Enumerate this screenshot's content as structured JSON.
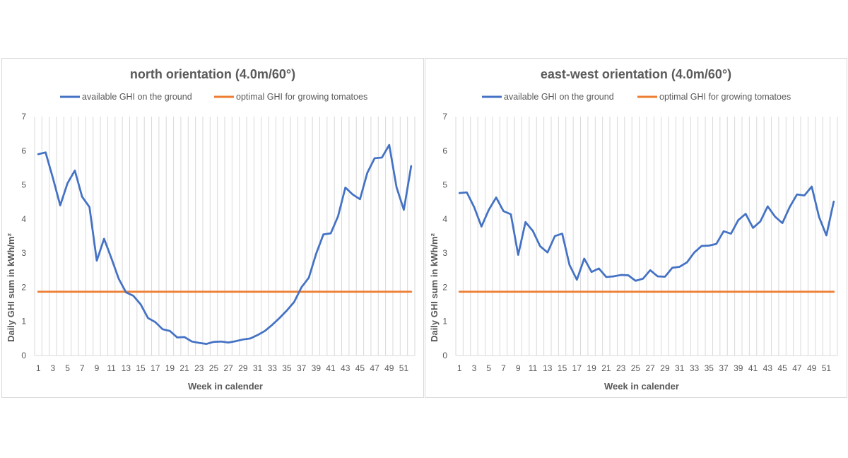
{
  "chart_data": [
    {
      "type": "line",
      "title": "north orientation (4.0m/60°)",
      "xlabel": "Week in calender",
      "ylabel": "Daily GHI sum in kWh/m²",
      "ylim": [
        0,
        7
      ],
      "yticks": [
        "0",
        "1",
        "2",
        "3",
        "4",
        "5",
        "6",
        "7"
      ],
      "xticks": [
        "1",
        "3",
        "5",
        "7",
        "9",
        "11",
        "13",
        "15",
        "17",
        "19",
        "21",
        "23",
        "25",
        "27",
        "29",
        "31",
        "33",
        "35",
        "37",
        "39",
        "41",
        "43",
        "45",
        "47",
        "49",
        "51"
      ],
      "grid": "vertical",
      "legend_position": "top",
      "x": [
        1,
        2,
        3,
        4,
        5,
        6,
        7,
        8,
        9,
        10,
        11,
        12,
        13,
        14,
        15,
        16,
        17,
        18,
        19,
        20,
        21,
        22,
        23,
        24,
        25,
        26,
        27,
        28,
        29,
        30,
        31,
        32,
        33,
        34,
        35,
        36,
        37,
        38,
        39,
        40,
        41,
        42,
        43,
        44,
        45,
        46,
        47,
        48,
        49,
        50,
        51,
        52
      ],
      "series": [
        {
          "name": "available GHI on the ground",
          "color": "#4472c4",
          "values": [
            5.9,
            5.95,
            5.2,
            4.4,
            5.05,
            5.42,
            4.65,
            4.35,
            2.78,
            3.42,
            2.85,
            2.25,
            1.85,
            1.75,
            1.5,
            1.1,
            0.98,
            0.77,
            0.72,
            0.53,
            0.54,
            0.41,
            0.37,
            0.34,
            0.4,
            0.41,
            0.38,
            0.42,
            0.47,
            0.5,
            0.6,
            0.72,
            0.9,
            1.1,
            1.32,
            1.57,
            2.0,
            2.28,
            2.98,
            3.55,
            3.58,
            4.08,
            4.92,
            4.72,
            4.58,
            5.35,
            5.78,
            5.8,
            6.17,
            4.93,
            4.27,
            5.55
          ]
        },
        {
          "name": "optimal GHI for growing tomatoes",
          "color": "#ed7d31",
          "values": [
            1.87,
            1.87,
            1.87,
            1.87,
            1.87,
            1.87,
            1.87,
            1.87,
            1.87,
            1.87,
            1.87,
            1.87,
            1.87,
            1.87,
            1.87,
            1.87,
            1.87,
            1.87,
            1.87,
            1.87,
            1.87,
            1.87,
            1.87,
            1.87,
            1.87,
            1.87,
            1.87,
            1.87,
            1.87,
            1.87,
            1.87,
            1.87,
            1.87,
            1.87,
            1.87,
            1.87,
            1.87,
            1.87,
            1.87,
            1.87,
            1.87,
            1.87,
            1.87,
            1.87,
            1.87,
            1.87,
            1.87,
            1.87,
            1.87,
            1.87,
            1.87,
            1.87
          ]
        }
      ]
    },
    {
      "type": "line",
      "title": "east-west orientation (4.0m/60°)",
      "xlabel": "Week in calender",
      "ylabel": "Daily GHI sum in kWh/m²",
      "ylim": [
        0,
        7
      ],
      "yticks": [
        "0",
        "1",
        "2",
        "3",
        "4",
        "5",
        "6",
        "7"
      ],
      "xticks": [
        "1",
        "3",
        "5",
        "7",
        "9",
        "11",
        "13",
        "15",
        "17",
        "19",
        "21",
        "23",
        "25",
        "27",
        "29",
        "31",
        "33",
        "35",
        "37",
        "39",
        "41",
        "43",
        "45",
        "47",
        "49",
        "51"
      ],
      "grid": "vertical",
      "legend_position": "top",
      "x": [
        1,
        2,
        3,
        4,
        5,
        6,
        7,
        8,
        9,
        10,
        11,
        12,
        13,
        14,
        15,
        16,
        17,
        18,
        19,
        20,
        21,
        22,
        23,
        24,
        25,
        26,
        27,
        28,
        29,
        30,
        31,
        32,
        33,
        34,
        35,
        36,
        37,
        38,
        39,
        40,
        41,
        42,
        43,
        44,
        45,
        46,
        47,
        48,
        49,
        50,
        51,
        52
      ],
      "series": [
        {
          "name": "available GHI on the ground",
          "color": "#4472c4",
          "values": [
            4.76,
            4.78,
            4.35,
            3.78,
            4.27,
            4.63,
            4.23,
            4.14,
            2.95,
            3.91,
            3.65,
            3.2,
            3.02,
            3.5,
            3.57,
            2.65,
            2.22,
            2.84,
            2.45,
            2.55,
            2.3,
            2.32,
            2.36,
            2.35,
            2.19,
            2.25,
            2.5,
            2.32,
            2.31,
            2.57,
            2.6,
            2.73,
            3.02,
            3.21,
            3.22,
            3.27,
            3.64,
            3.57,
            3.97,
            4.15,
            3.74,
            3.93,
            4.37,
            4.07,
            3.88,
            4.35,
            4.72,
            4.69,
            4.95,
            4.06,
            3.52,
            4.51
          ]
        },
        {
          "name": "optimal GHI for growing tomatoes",
          "color": "#ed7d31",
          "values": [
            1.87,
            1.87,
            1.87,
            1.87,
            1.87,
            1.87,
            1.87,
            1.87,
            1.87,
            1.87,
            1.87,
            1.87,
            1.87,
            1.87,
            1.87,
            1.87,
            1.87,
            1.87,
            1.87,
            1.87,
            1.87,
            1.87,
            1.87,
            1.87,
            1.87,
            1.87,
            1.87,
            1.87,
            1.87,
            1.87,
            1.87,
            1.87,
            1.87,
            1.87,
            1.87,
            1.87,
            1.87,
            1.87,
            1.87,
            1.87,
            1.87,
            1.87,
            1.87,
            1.87,
            1.87,
            1.87,
            1.87,
            1.87,
            1.87,
            1.87,
            1.87,
            1.87
          ]
        }
      ]
    }
  ]
}
